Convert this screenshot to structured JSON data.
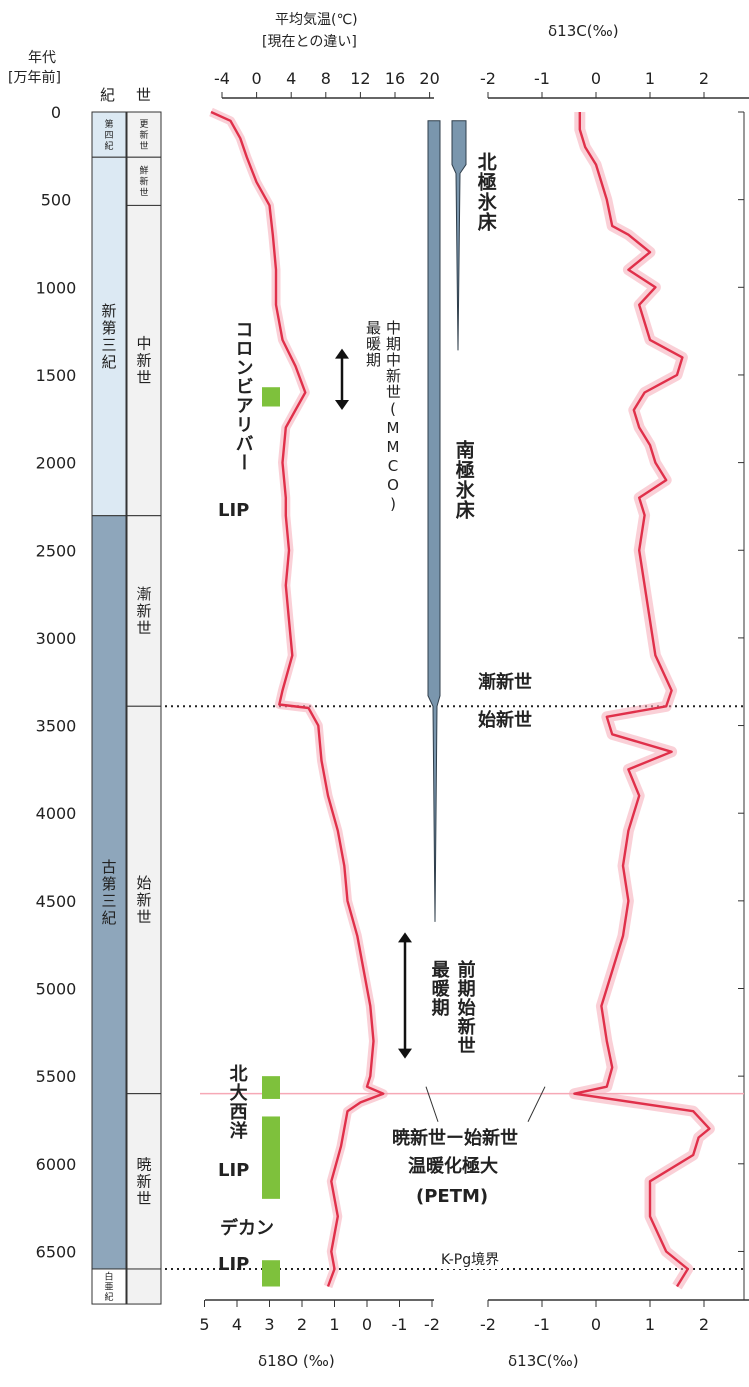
{
  "colors": {
    "curve": "#e0304a",
    "band": "#f6a9b6",
    "ice": "#7a96ad",
    "period_light": "#dce9f3",
    "period_dark": "#8ea6bb",
    "epoch_fill": "#f2f2f2",
    "lip": "#7ec13c"
  },
  "headers": {
    "age_line1": "年代",
    "age_line2": "[万年前]",
    "period": "紀",
    "epoch": "世",
    "temp_line1": "平均気温(℃)",
    "temp_line2": "[現在との違い]",
    "d13c_top": "δ13C(‰)",
    "d18o_bottom": "δ18O (‰)",
    "d13c_bottom": "δ13C(‰)"
  },
  "periods": [
    {
      "name": "第四紀",
      "from": 0,
      "to": 258,
      "shade": "light"
    },
    {
      "name": "新第三紀",
      "from": 258,
      "to": 2303,
      "shade": "light"
    },
    {
      "name": "古第三紀",
      "from": 2303,
      "to": 6600,
      "shade": "dark"
    },
    {
      "name": "白亜紀",
      "from": 6600,
      "to": 6800,
      "shade": "none"
    }
  ],
  "epochs": [
    {
      "name": "更新世",
      "from": 0,
      "to": 258
    },
    {
      "name": "鮮新世",
      "from": 258,
      "to": 533
    },
    {
      "name": "中新世",
      "from": 533,
      "to": 2303
    },
    {
      "name": "漸新世",
      "from": 2303,
      "to": 3390
    },
    {
      "name": "始新世",
      "from": 3390,
      "to": 5600
    },
    {
      "name": "暁新世",
      "from": 5600,
      "to": 6600
    },
    {
      "name": "",
      "from": 6600,
      "to": 6800
    }
  ],
  "annotations": {
    "north_ice": "北極氷床",
    "south_ice": "南極氷床",
    "mmco_line1": "中期中新世(MMCO)",
    "mmco_line2": "最暖期",
    "columbia": "コロンビアリバー",
    "lip": "LIP",
    "oligocene": "漸新世",
    "eocene": "始新世",
    "eeco_line1": "前期始新世",
    "eeco_line2": "最暖期",
    "north_atlantic": "北大西洋",
    "petm_line1": "暁新世ー始新世",
    "petm_line2": "温暖化極大",
    "petm_line3": "(PETM)",
    "deccan": "デカン",
    "kpg": "K-Pg境界"
  },
  "chart_data": [
    {
      "type": "line",
      "name": "δ18O",
      "x_axis_bottom": {
        "label": "δ18O (‰)",
        "ticks": [
          "5",
          "4",
          "3",
          "2",
          "1",
          "0",
          "-1",
          "-2"
        ],
        "range": [
          5,
          -2
        ]
      },
      "x_axis_top": {
        "label": "平均気温(℃) [現在との違い]",
        "ticks": [
          "-4",
          "0",
          "4",
          "8",
          "12",
          "16",
          "20"
        ]
      },
      "y_axis": {
        "label": "年代 [万年前]",
        "ticks": [
          "0",
          "500",
          "1000",
          "1500",
          "2000",
          "2500",
          "3000",
          "3500",
          "4000",
          "4500",
          "5000",
          "5500",
          "6000",
          "6500"
        ],
        "range": [
          0,
          6800
        ]
      },
      "x": [
        0,
        50,
        150,
        258,
        400,
        533,
        700,
        900,
        1100,
        1300,
        1450,
        1600,
        1700,
        1800,
        2000,
        2200,
        2303,
        2500,
        2700,
        2900,
        3100,
        3300,
        3380,
        3400,
        3500,
        3700,
        3900,
        4100,
        4300,
        4500,
        4700,
        4900,
        5100,
        5300,
        5500,
        5560,
        5600,
        5650,
        5700,
        5900,
        6100,
        6300,
        6500,
        6600,
        6700
      ],
      "y": [
        4.8,
        4.2,
        3.9,
        3.7,
        3.4,
        3.0,
        2.9,
        2.8,
        2.8,
        2.6,
        2.2,
        1.9,
        2.2,
        2.5,
        2.6,
        2.5,
        2.5,
        2.4,
        2.5,
        2.4,
        2.3,
        2.6,
        2.7,
        1.8,
        1.5,
        1.4,
        1.2,
        0.9,
        0.7,
        0.6,
        0.3,
        0.1,
        -0.1,
        -0.2,
        -0.1,
        0.0,
        -0.5,
        0.2,
        0.6,
        0.8,
        1.1,
        0.9,
        1.1,
        1.0,
        1.2
      ]
    },
    {
      "type": "line",
      "name": "δ13C",
      "x_axis": {
        "label": "δ13C(‰)",
        "ticks": [
          "-2",
          "-1",
          "0",
          "1",
          "2"
        ],
        "range": [
          -2,
          2.8
        ]
      },
      "y_axis": {
        "range": [
          0,
          6800
        ]
      },
      "x": [
        0,
        100,
        200,
        300,
        400,
        500,
        650,
        700,
        800,
        900,
        1000,
        1100,
        1200,
        1300,
        1400,
        1500,
        1600,
        1700,
        1800,
        1900,
        2000,
        2100,
        2200,
        2300,
        2500,
        2700,
        2900,
        3100,
        3300,
        3390,
        3450,
        3550,
        3650,
        3750,
        3900,
        4100,
        4300,
        4500,
        4700,
        4900,
        5100,
        5300,
        5450,
        5560,
        5600,
        5700,
        5800,
        5850,
        5950,
        6100,
        6300,
        6500,
        6600,
        6700
      ],
      "y": [
        -0.3,
        -0.3,
        -0.2,
        0.0,
        0.1,
        0.2,
        0.3,
        0.6,
        1.0,
        0.6,
        1.1,
        0.8,
        0.9,
        1.0,
        1.6,
        1.5,
        0.9,
        0.7,
        0.8,
        1.0,
        1.1,
        1.3,
        0.8,
        0.9,
        0.8,
        0.9,
        1.0,
        1.1,
        1.4,
        1.3,
        0.2,
        0.3,
        1.4,
        0.6,
        0.8,
        0.6,
        0.5,
        0.6,
        0.5,
        0.3,
        0.1,
        0.2,
        0.3,
        0.2,
        -0.4,
        1.8,
        2.1,
        1.9,
        1.8,
        1.0,
        1.0,
        1.3,
        1.7,
        1.5
      ]
    }
  ]
}
